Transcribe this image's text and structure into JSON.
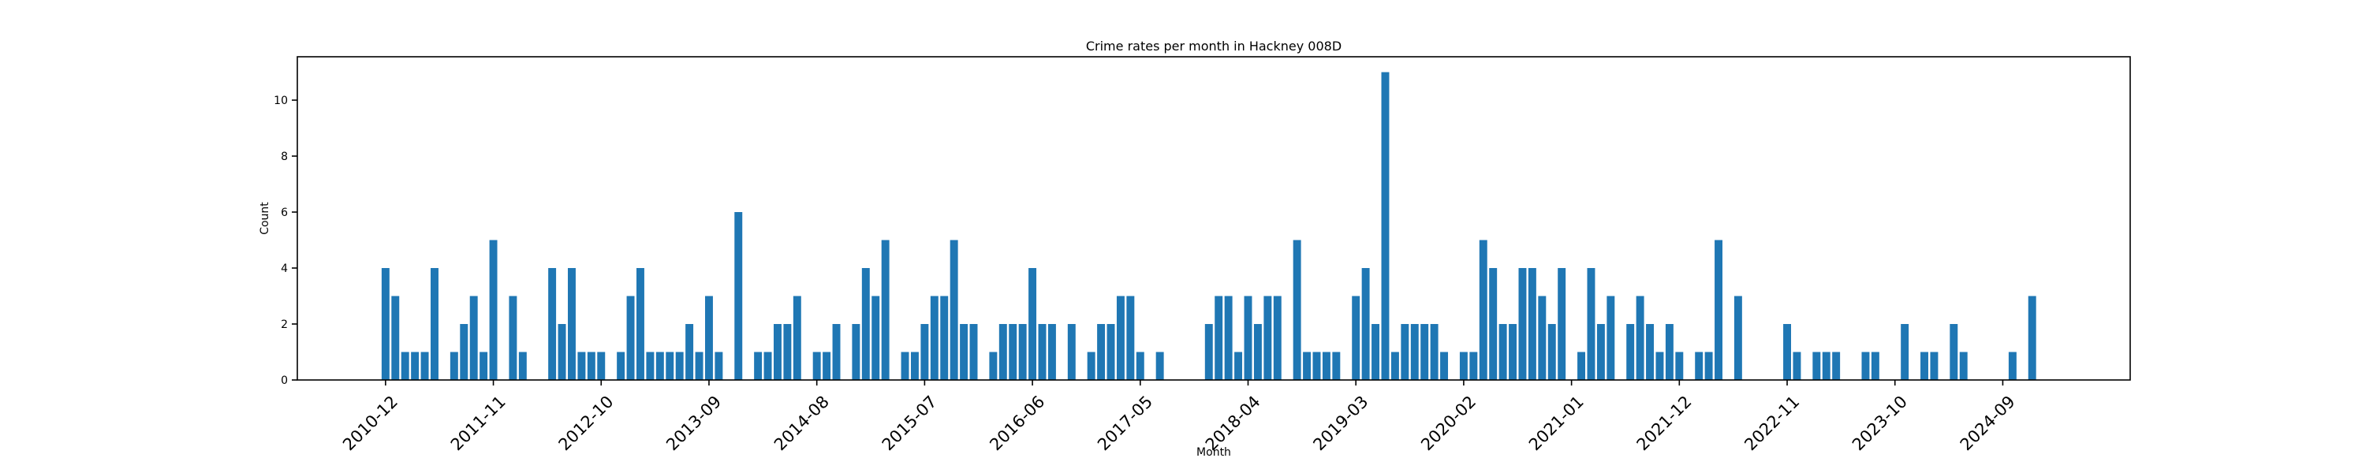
{
  "chart_data": {
    "type": "bar",
    "title": "Crime rates per month in Hackney 008D",
    "xlabel": "Month",
    "ylabel": "Count",
    "ylim": [
      0,
      11.55
    ],
    "yticks": [
      0,
      2,
      4,
      6,
      8,
      10
    ],
    "xticks": [
      "2010-12",
      "2011-11",
      "2012-10",
      "2013-09",
      "2014-08",
      "2015-07",
      "2016-06",
      "2017-05",
      "2018-04",
      "2019-03",
      "2020-02",
      "2021-01",
      "2021-12",
      "2022-11",
      "2023-10",
      "2024-09"
    ],
    "start_month": "2010-12",
    "x_range_months": [
      -9,
      178
    ],
    "grid": false,
    "color": "#1f77b4",
    "points": [
      [
        "2010-12",
        4
      ],
      [
        "2011-01",
        3
      ],
      [
        "2011-02",
        1
      ],
      [
        "2011-03",
        1
      ],
      [
        "2011-04",
        1
      ],
      [
        "2011-05",
        4
      ],
      [
        "2011-07",
        1
      ],
      [
        "2011-08",
        2
      ],
      [
        "2011-09",
        3
      ],
      [
        "2011-10",
        1
      ],
      [
        "2011-11",
        5
      ],
      [
        "2012-01",
        3
      ],
      [
        "2012-02",
        1
      ],
      [
        "2012-05",
        4
      ],
      [
        "2012-06",
        2
      ],
      [
        "2012-07",
        4
      ],
      [
        "2012-08",
        1
      ],
      [
        "2012-09",
        1
      ],
      [
        "2012-10",
        1
      ],
      [
        "2012-12",
        1
      ],
      [
        "2013-01",
        3
      ],
      [
        "2013-02",
        4
      ],
      [
        "2013-03",
        1
      ],
      [
        "2013-04",
        1
      ],
      [
        "2013-05",
        1
      ],
      [
        "2013-06",
        1
      ],
      [
        "2013-07",
        2
      ],
      [
        "2013-08",
        1
      ],
      [
        "2013-09",
        3
      ],
      [
        "2013-10",
        1
      ],
      [
        "2013-12",
        6
      ],
      [
        "2014-02",
        1
      ],
      [
        "2014-03",
        1
      ],
      [
        "2014-04",
        2
      ],
      [
        "2014-05",
        2
      ],
      [
        "2014-06",
        3
      ],
      [
        "2014-08",
        1
      ],
      [
        "2014-09",
        1
      ],
      [
        "2014-10",
        2
      ],
      [
        "2014-12",
        2
      ],
      [
        "2015-01",
        4
      ],
      [
        "2015-02",
        3
      ],
      [
        "2015-03",
        5
      ],
      [
        "2015-05",
        1
      ],
      [
        "2015-06",
        1
      ],
      [
        "2015-07",
        2
      ],
      [
        "2015-08",
        3
      ],
      [
        "2015-09",
        3
      ],
      [
        "2015-10",
        5
      ],
      [
        "2015-11",
        2
      ],
      [
        "2015-12",
        2
      ],
      [
        "2016-02",
        1
      ],
      [
        "2016-03",
        2
      ],
      [
        "2016-04",
        2
      ],
      [
        "2016-05",
        2
      ],
      [
        "2016-06",
        4
      ],
      [
        "2016-07",
        2
      ],
      [
        "2016-08",
        2
      ],
      [
        "2016-10",
        2
      ],
      [
        "2016-12",
        1
      ],
      [
        "2017-01",
        2
      ],
      [
        "2017-02",
        2
      ],
      [
        "2017-03",
        3
      ],
      [
        "2017-04",
        3
      ],
      [
        "2017-05",
        1
      ],
      [
        "2017-07",
        1
      ],
      [
        "2017-12",
        2
      ],
      [
        "2018-01",
        3
      ],
      [
        "2018-02",
        3
      ],
      [
        "2018-03",
        1
      ],
      [
        "2018-04",
        3
      ],
      [
        "2018-05",
        2
      ],
      [
        "2018-06",
        3
      ],
      [
        "2018-07",
        3
      ],
      [
        "2018-09",
        5
      ],
      [
        "2018-10",
        1
      ],
      [
        "2018-11",
        1
      ],
      [
        "2018-12",
        1
      ],
      [
        "2019-01",
        1
      ],
      [
        "2019-03",
        3
      ],
      [
        "2019-04",
        4
      ],
      [
        "2019-05",
        2
      ],
      [
        "2019-06",
        11
      ],
      [
        "2019-07",
        1
      ],
      [
        "2019-08",
        2
      ],
      [
        "2019-09",
        2
      ],
      [
        "2019-10",
        2
      ],
      [
        "2019-11",
        2
      ],
      [
        "2019-12",
        1
      ],
      [
        "2020-02",
        1
      ],
      [
        "2020-03",
        1
      ],
      [
        "2020-04",
        5
      ],
      [
        "2020-05",
        4
      ],
      [
        "2020-06",
        2
      ],
      [
        "2020-07",
        2
      ],
      [
        "2020-08",
        4
      ],
      [
        "2020-09",
        4
      ],
      [
        "2020-10",
        3
      ],
      [
        "2020-11",
        2
      ],
      [
        "2020-12",
        4
      ],
      [
        "2021-02",
        1
      ],
      [
        "2021-03",
        4
      ],
      [
        "2021-04",
        2
      ],
      [
        "2021-05",
        3
      ],
      [
        "2021-07",
        2
      ],
      [
        "2021-08",
        3
      ],
      [
        "2021-09",
        2
      ],
      [
        "2021-10",
        1
      ],
      [
        "2021-11",
        2
      ],
      [
        "2021-12",
        1
      ],
      [
        "2022-02",
        1
      ],
      [
        "2022-03",
        1
      ],
      [
        "2022-04",
        5
      ],
      [
        "2022-06",
        3
      ],
      [
        "2022-11",
        2
      ],
      [
        "2022-12",
        1
      ],
      [
        "2023-02",
        1
      ],
      [
        "2023-03",
        1
      ],
      [
        "2023-04",
        1
      ],
      [
        "2023-07",
        1
      ],
      [
        "2023-08",
        1
      ],
      [
        "2023-11",
        2
      ],
      [
        "2024-01",
        1
      ],
      [
        "2024-02",
        1
      ],
      [
        "2024-04",
        2
      ],
      [
        "2024-05",
        1
      ],
      [
        "2024-10",
        1
      ],
      [
        "2024-12",
        3
      ]
    ]
  }
}
